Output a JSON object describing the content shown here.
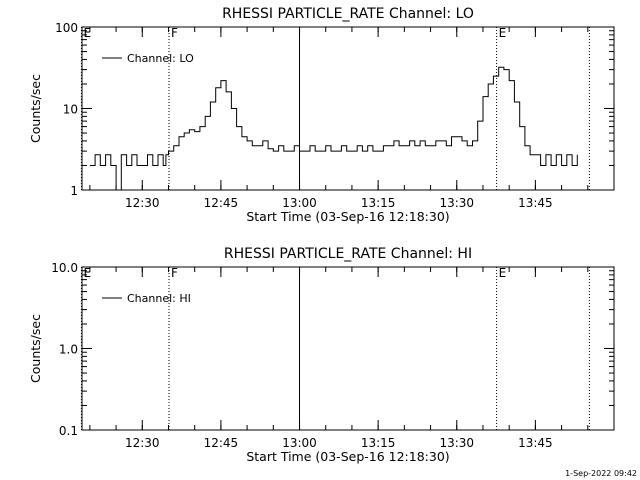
{
  "stamp": "1-Sep-2022 09:42",
  "chart_data": [
    {
      "type": "line",
      "title": "RHESSI PARTICLE_RATE Channel: LO",
      "xlabel": "Start Time (03-Sep-16 12:18:30)",
      "ylabel": "Counts/sec",
      "yscale": "log",
      "ylim": [
        1,
        100
      ],
      "xlim_minutes": [
        "12:18:30",
        "14:00:00"
      ],
      "yticks": [
        {
          "value": 1,
          "label": "1"
        },
        {
          "value": 10,
          "label": "10"
        },
        {
          "value": 100,
          "label": "100"
        }
      ],
      "xticks": [
        {
          "t": 750,
          "label": "12:30"
        },
        {
          "t": 765,
          "label": "12:45"
        },
        {
          "t": 780,
          "label": "13:00"
        },
        {
          "t": 795,
          "label": "13:15"
        },
        {
          "t": 810,
          "label": "13:30"
        },
        {
          "t": 825,
          "label": "13:45"
        }
      ],
      "legend": {
        "position": "top-left",
        "label": "Channel: LO"
      },
      "grid": false,
      "markers": [
        {
          "t": 738.4,
          "style": "dotted",
          "label": "E"
        },
        {
          "t": 755.1,
          "style": "dotted",
          "label": "F"
        },
        {
          "t": 780.0,
          "style": "solid",
          "label": ""
        },
        {
          "t": 817.6,
          "style": "dotted",
          "label": "E"
        },
        {
          "t": 835.3,
          "style": "dotted",
          "label": ""
        }
      ],
      "series": [
        {
          "x": [
            740,
            741,
            742,
            743,
            744,
            745,
            746,
            747,
            748,
            749,
            750,
            751,
            752,
            753,
            754,
            754.5,
            755,
            756,
            757,
            758,
            759,
            760,
            761,
            762,
            763,
            764,
            765,
            766,
            767,
            768,
            769,
            770,
            771,
            772,
            773,
            774,
            775,
            776,
            777,
            778,
            779,
            780,
            781,
            782,
            783,
            784,
            785,
            786,
            787,
            788,
            789,
            790,
            791,
            792,
            793,
            794,
            795,
            796,
            797,
            798,
            799,
            800,
            801,
            802,
            803,
            804,
            805,
            806,
            807,
            808,
            809,
            810,
            811,
            812,
            813,
            814,
            815,
            816,
            817,
            818,
            819,
            820,
            821,
            822,
            823,
            824,
            825,
            826,
            827,
            828,
            829,
            830,
            831,
            832,
            833
          ],
          "y": [
            2,
            2.7,
            2,
            2.7,
            2,
            1,
            2.7,
            2,
            2.7,
            2,
            2,
            2.7,
            2,
            2.7,
            2,
            2.7,
            3,
            3.5,
            4.5,
            5,
            5.5,
            5.2,
            6,
            8,
            12,
            18,
            22,
            16,
            10,
            6,
            4.5,
            4,
            3.5,
            3.5,
            4,
            3.2,
            3,
            3.5,
            3,
            3,
            3.5,
            3,
            3,
            3.5,
            3,
            3,
            3.5,
            3,
            3,
            3.5,
            3,
            3,
            3.5,
            3,
            3.5,
            3,
            3,
            3.5,
            3.5,
            4,
            3.5,
            3.5,
            4,
            3.5,
            4,
            3.5,
            3.5,
            4,
            4,
            3.5,
            4.5,
            4.5,
            4,
            3.5,
            4,
            7,
            14,
            20,
            25,
            32,
            30,
            22,
            12,
            6,
            3.5,
            2.7,
            2.7,
            2,
            2.7,
            2,
            2.7,
            2,
            2.7,
            2,
            2.7
          ]
        }
      ]
    },
    {
      "type": "line",
      "title": "RHESSI PARTICLE_RATE Channel: HI",
      "xlabel": "Start Time (03-Sep-16 12:18:30)",
      "ylabel": "Counts/sec",
      "yscale": "log",
      "ylim": [
        0.1,
        10
      ],
      "yticks": [
        {
          "value": 0.1,
          "label": "0.1"
        },
        {
          "value": 1,
          "label": "1.0"
        },
        {
          "value": 10,
          "label": "10.0"
        }
      ],
      "xticks": [
        {
          "t": 750,
          "label": "12:30"
        },
        {
          "t": 765,
          "label": "12:45"
        },
        {
          "t": 780,
          "label": "13:00"
        },
        {
          "t": 795,
          "label": "13:15"
        },
        {
          "t": 810,
          "label": "13:30"
        },
        {
          "t": 825,
          "label": "13:45"
        }
      ],
      "legend": {
        "position": "top-left",
        "label": "Channel: HI"
      },
      "grid": false,
      "markers": [
        {
          "t": 738.4,
          "style": "dotted",
          "label": "E"
        },
        {
          "t": 755.1,
          "style": "dotted",
          "label": "F"
        },
        {
          "t": 780.0,
          "style": "solid",
          "label": ""
        },
        {
          "t": 817.6,
          "style": "dotted",
          "label": "E"
        },
        {
          "t": 835.3,
          "style": "dotted",
          "label": ""
        }
      ],
      "series": []
    }
  ]
}
